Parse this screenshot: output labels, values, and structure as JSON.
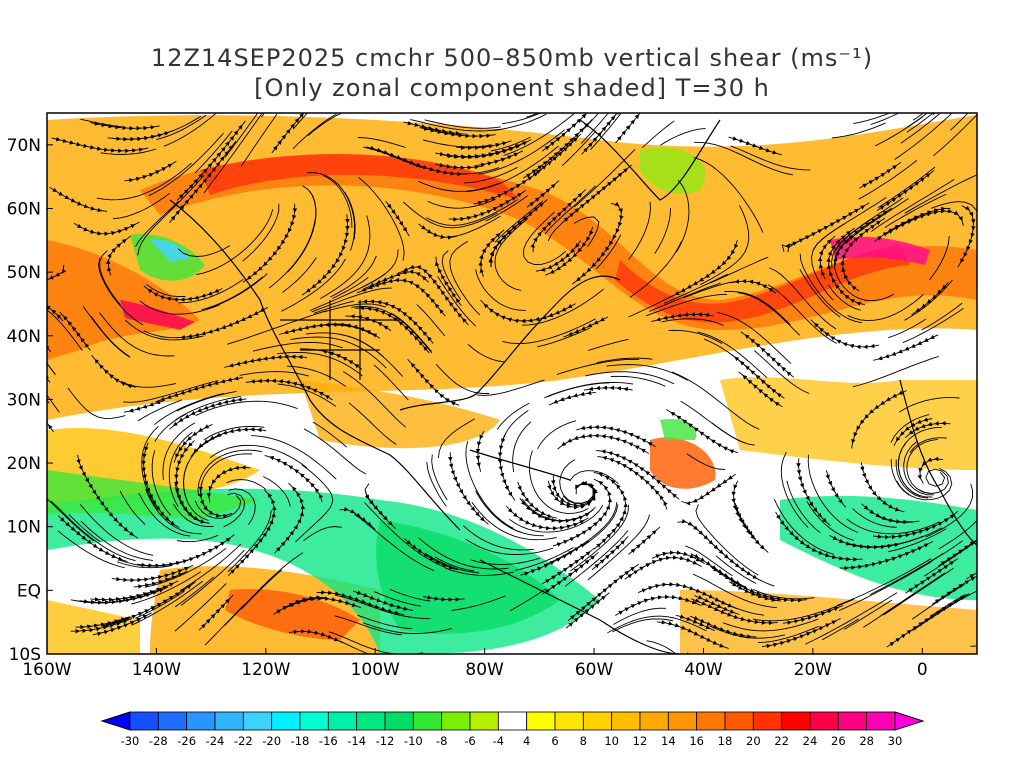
{
  "title": {
    "line1": "12Z14SEP2025 cmchr 500–850mb vertical shear (ms⁻¹)",
    "line2": "[Only zonal component shaded] T=30 h"
  },
  "map": {
    "lat_labels": [
      "70N",
      "60N",
      "50N",
      "40N",
      "30N",
      "20N",
      "10N",
      "EQ",
      "10S"
    ],
    "lat_values": [
      70,
      60,
      50,
      40,
      30,
      20,
      10,
      0,
      -10
    ],
    "lon_labels": [
      "160W",
      "140W",
      "120W",
      "100W",
      "80W",
      "60W",
      "40W",
      "20W",
      "0"
    ],
    "lon_values": [
      -160,
      -140,
      -120,
      -100,
      -80,
      -60,
      -40,
      -20,
      0
    ],
    "lat_range": [
      -10,
      75
    ],
    "lon_range": [
      -160,
      10
    ],
    "streamline_color": "#000000"
  },
  "colorbar": {
    "labels": [
      "-30",
      "-28",
      "-26",
      "-24",
      "-22",
      "-20",
      "-18",
      "-16",
      "-14",
      "-12",
      "-10",
      "-8",
      "-6",
      "-4",
      "4",
      "6",
      "8",
      "10",
      "12",
      "14",
      "16",
      "18",
      "20",
      "22",
      "24",
      "26",
      "28",
      "30"
    ],
    "colors": [
      "#0000ff",
      "#1450ff",
      "#1e6eff",
      "#2896ff",
      "#32b4ff",
      "#3cd2ff",
      "#00f0ff",
      "#00ffd2",
      "#00f0aa",
      "#00e682",
      "#00dc64",
      "#32e632",
      "#78f000",
      "#b4f000",
      "#ffffff",
      "#ffff00",
      "#ffe600",
      "#ffd200",
      "#ffbe00",
      "#ffaa00",
      "#ff9600",
      "#ff7800",
      "#ff5a00",
      "#ff3200",
      "#ff0000",
      "#ff0046",
      "#ff0082",
      "#ff00b4",
      "#ff00dc"
    ]
  }
}
